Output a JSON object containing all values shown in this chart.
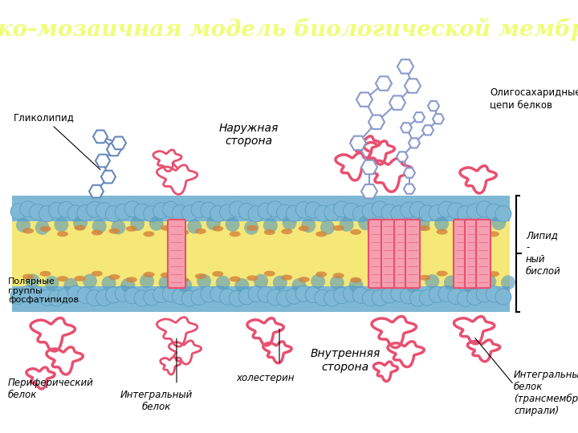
{
  "title": "Жидко-мозаичная модель биологической мембраны",
  "header_bg": "#2B2B9B",
  "title_color": "#EEFF77",
  "fig_bg": "#FFFFFF",
  "body_bg": "#FFFFFF",
  "labels": {
    "glycolipid": "Гликолипид",
    "outer_side": "Наружная\nсторона",
    "oligosaccharide": "Олигосахаридные\nцепи белков",
    "lipid_bilayer": "Липид\n-\nный\nбислой",
    "polar_groups": "Полярные\nгруппы\nфосфатипидов",
    "peripheral_protein": "Периферический\nбелок",
    "integral_protein": "Интегральный\nбелок",
    "cholesterol": "холестерин",
    "inner_side": "Внутренняя\nсторона",
    "transmembrane": "Интегральный\nбелок\n(трансмембранные\nспирали)"
  },
  "colors": {
    "sphere_blue": "#7EB8D4",
    "sphere_blue_dark": "#5599BB",
    "tail_yellow": "#F5E878",
    "tail_yellow_dark": "#E8C840",
    "orange_dot": "#D4823A",
    "protein_pink": "#E85070",
    "protein_fill": "#F4A0B0",
    "protein_stripe": "#E87090",
    "glyco_blue": "#6688BB",
    "oligo_blue": "#8899CC",
    "membrane_wave_top": "#A8D4E8",
    "membrane_wave_bot": "#90C0D8"
  }
}
